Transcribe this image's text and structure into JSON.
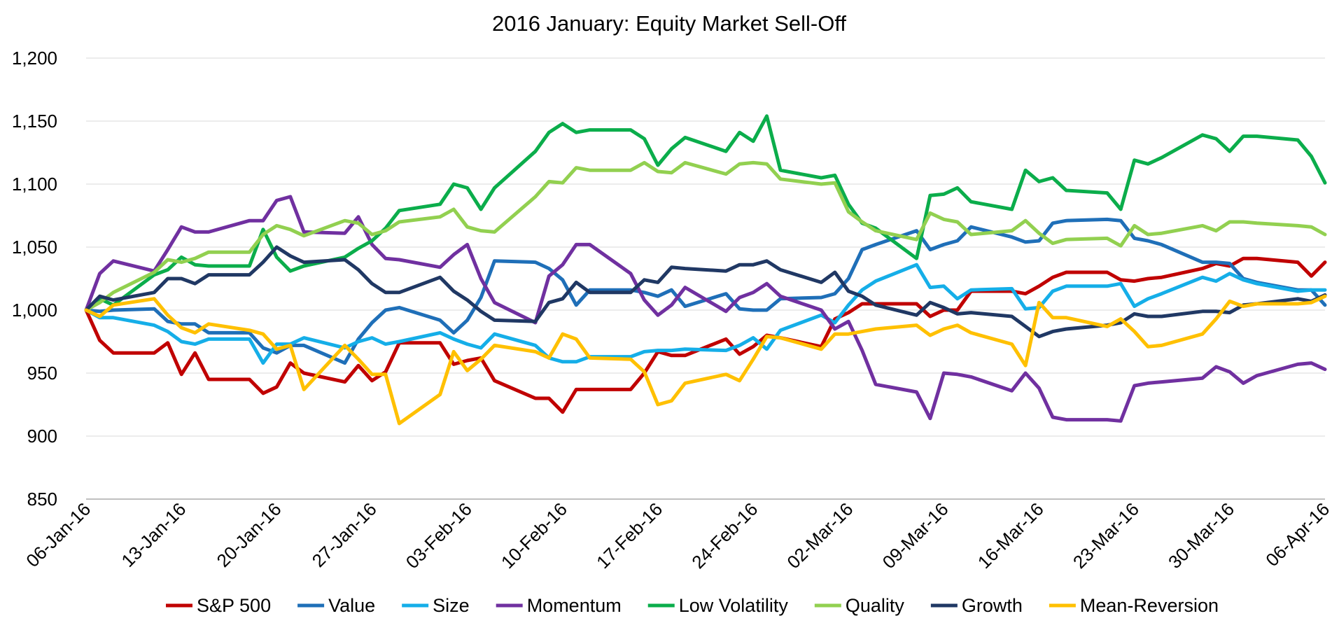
{
  "chart_data": {
    "type": "line",
    "title": "2016 January: Equity Market Sell-Off",
    "xlabel": "",
    "ylabel": "",
    "ylim": [
      850,
      1200
    ],
    "yticks": [
      850,
      900,
      950,
      1000,
      1050,
      1100,
      1150,
      1200
    ],
    "ytick_labels": [
      "850",
      "900",
      "950",
      "1,000",
      "1,050",
      "1,100",
      "1,150",
      "1,200"
    ],
    "xlim": [
      0,
      91
    ],
    "xticks": [
      0,
      7,
      14,
      21,
      28,
      35,
      42,
      49,
      56,
      63,
      70,
      77,
      84,
      91
    ],
    "xtick_labels": [
      "06-Jan-16",
      "13-Jan-16",
      "20-Jan-16",
      "27-Jan-16",
      "03-Feb-16",
      "10-Feb-16",
      "17-Feb-16",
      "24-Feb-16",
      "02-Mar-16",
      "09-Mar-16",
      "16-Mar-16",
      "23-Mar-16",
      "30-Mar-16",
      "06-Apr-16"
    ],
    "grid": "horizontal",
    "legend": "bottom",
    "x": [
      0,
      1,
      2,
      5,
      6,
      7,
      8,
      9,
      12,
      13,
      14,
      15,
      16,
      19,
      20,
      21,
      22,
      23,
      26,
      27,
      28,
      29,
      30,
      33,
      34,
      35,
      36,
      37,
      40,
      41,
      42,
      43,
      44,
      47,
      48,
      49,
      50,
      51,
      54,
      55,
      56,
      57,
      58,
      61,
      62,
      63,
      64,
      65,
      68,
      69,
      70,
      71,
      72,
      75,
      76,
      77,
      78,
      79,
      82,
      83,
      84,
      85,
      86,
      89,
      90,
      91
    ],
    "series": [
      {
        "name": "S&P 500",
        "color": "#c00000",
        "values": [
          1000,
          976,
          966,
          966,
          974,
          949,
          966,
          945,
          945,
          934,
          939,
          958,
          950,
          943,
          956,
          944,
          951,
          974,
          974,
          957,
          960,
          962,
          944,
          930,
          930,
          919,
          937,
          937,
          937,
          950,
          967,
          964,
          964,
          977,
          965,
          971,
          980,
          978,
          971,
          993,
          998,
          1005,
          1005,
          1005,
          995,
          1000,
          1000,
          1015,
          1015,
          1013,
          1019,
          1026,
          1030,
          1030,
          1024,
          1023,
          1025,
          1026,
          1033,
          1037,
          1035,
          1041,
          1041,
          1038,
          1027,
          1038
        ]
      },
      {
        "name": "Value",
        "color": "#1f6fb8",
        "values": [
          1000,
          999,
          1000,
          1001,
          991,
          989,
          989,
          982,
          982,
          970,
          966,
          972,
          972,
          958,
          977,
          990,
          1000,
          1002,
          992,
          982,
          992,
          1010,
          1039,
          1038,
          1033,
          1024,
          1004,
          1016,
          1016,
          1014,
          1011,
          1016,
          1003,
          1013,
          1001,
          1000,
          1000,
          1009,
          1010,
          1013,
          1025,
          1048,
          1052,
          1063,
          1048,
          1052,
          1055,
          1066,
          1058,
          1054,
          1055,
          1069,
          1071,
          1072,
          1071,
          1057,
          1055,
          1052,
          1038,
          1038,
          1037,
          1025,
          1022,
          1016,
          1016,
          1004
        ]
      },
      {
        "name": "Size",
        "color": "#15aee8",
        "values": [
          1000,
          994,
          994,
          988,
          983,
          975,
          973,
          977,
          977,
          958,
          973,
          973,
          978,
          970,
          975,
          978,
          973,
          975,
          982,
          977,
          973,
          970,
          981,
          972,
          962,
          959,
          959,
          963,
          963,
          967,
          968,
          968,
          969,
          968,
          972,
          978,
          969,
          984,
          996,
          990,
          1004,
          1016,
          1023,
          1036,
          1018,
          1019,
          1009,
          1016,
          1017,
          1001,
          1002,
          1015,
          1019,
          1019,
          1021,
          1003,
          1009,
          1013,
          1026,
          1023,
          1029,
          1024,
          1021,
          1015,
          1016,
          1016
        ]
      },
      {
        "name": "Momentum",
        "color": "#7030a0",
        "values": [
          1000,
          1029,
          1039,
          1031,
          1048,
          1066,
          1062,
          1062,
          1071,
          1071,
          1087,
          1090,
          1062,
          1061,
          1074,
          1052,
          1041,
          1040,
          1034,
          1044,
          1052,
          1025,
          1006,
          990,
          1027,
          1036,
          1052,
          1052,
          1029,
          1008,
          996,
          1004,
          1018,
          999,
          1010,
          1014,
          1021,
          1011,
          1000,
          985,
          991,
          968,
          941,
          935,
          914,
          950,
          949,
          947,
          936,
          950,
          938,
          915,
          913,
          913,
          912,
          940,
          942,
          943,
          946,
          955,
          951,
          942,
          948,
          957,
          958,
          953
        ]
      },
      {
        "name": "Low Volatility",
        "color": "#0bad4b",
        "values": [
          1000,
          1009,
          1004,
          1028,
          1032,
          1042,
          1036,
          1035,
          1035,
          1064,
          1042,
          1031,
          1035,
          1042,
          1049,
          1055,
          1065,
          1079,
          1084,
          1100,
          1097,
          1080,
          1097,
          1126,
          1141,
          1148,
          1141,
          1143,
          1143,
          1136,
          1115,
          1128,
          1137,
          1126,
          1141,
          1134,
          1154,
          1111,
          1105,
          1107,
          1084,
          1069,
          1065,
          1041,
          1091,
          1092,
          1097,
          1086,
          1080,
          1111,
          1102,
          1105,
          1095,
          1093,
          1080,
          1119,
          1116,
          1121,
          1139,
          1136,
          1126,
          1138,
          1138,
          1135,
          1122,
          1101
        ]
      },
      {
        "name": "Quality",
        "color": "#92d050",
        "values": [
          1000,
          1006,
          1014,
          1030,
          1040,
          1038,
          1041,
          1046,
          1046,
          1060,
          1067,
          1064,
          1059,
          1071,
          1069,
          1060,
          1063,
          1070,
          1074,
          1080,
          1066,
          1063,
          1062,
          1090,
          1102,
          1101,
          1113,
          1111,
          1111,
          1117,
          1110,
          1109,
          1117,
          1108,
          1116,
          1117,
          1116,
          1104,
          1100,
          1101,
          1078,
          1070,
          1063,
          1056,
          1077,
          1072,
          1070,
          1060,
          1063,
          1071,
          1061,
          1053,
          1056,
          1057,
          1051,
          1067,
          1060,
          1061,
          1067,
          1063,
          1070,
          1070,
          1069,
          1067,
          1066,
          1060
        ]
      },
      {
        "name": "Growth",
        "color": "#203864",
        "values": [
          1000,
          1011,
          1008,
          1014,
          1025,
          1025,
          1021,
          1028,
          1028,
          1038,
          1050,
          1043,
          1038,
          1040,
          1032,
          1021,
          1014,
          1014,
          1026,
          1015,
          1008,
          999,
          992,
          991,
          1006,
          1009,
          1022,
          1014,
          1014,
          1024,
          1022,
          1034,
          1033,
          1031,
          1036,
          1036,
          1039,
          1032,
          1022,
          1030,
          1015,
          1011,
          1004,
          996,
          1006,
          1002,
          997,
          998,
          995,
          987,
          979,
          983,
          985,
          988,
          990,
          997,
          995,
          995,
          999,
          999,
          998,
          1004,
          1005,
          1009,
          1007,
          1012
        ]
      },
      {
        "name": "Mean-Reversion",
        "color": "#ffc000",
        "values": [
          1000,
          995,
          1004,
          1009,
          996,
          986,
          982,
          989,
          984,
          981,
          969,
          972,
          937,
          972,
          961,
          949,
          949,
          910,
          933,
          967,
          952,
          961,
          972,
          967,
          962,
          981,
          977,
          962,
          961,
          951,
          925,
          928,
          942,
          949,
          944,
          961,
          979,
          978,
          969,
          981,
          981,
          983,
          985,
          988,
          980,
          985,
          988,
          982,
          973,
          956,
          1006,
          994,
          994,
          987,
          993,
          983,
          971,
          972,
          981,
          993,
          1007,
          1003,
          1005,
          1005,
          1006,
          1011
        ]
      }
    ]
  }
}
